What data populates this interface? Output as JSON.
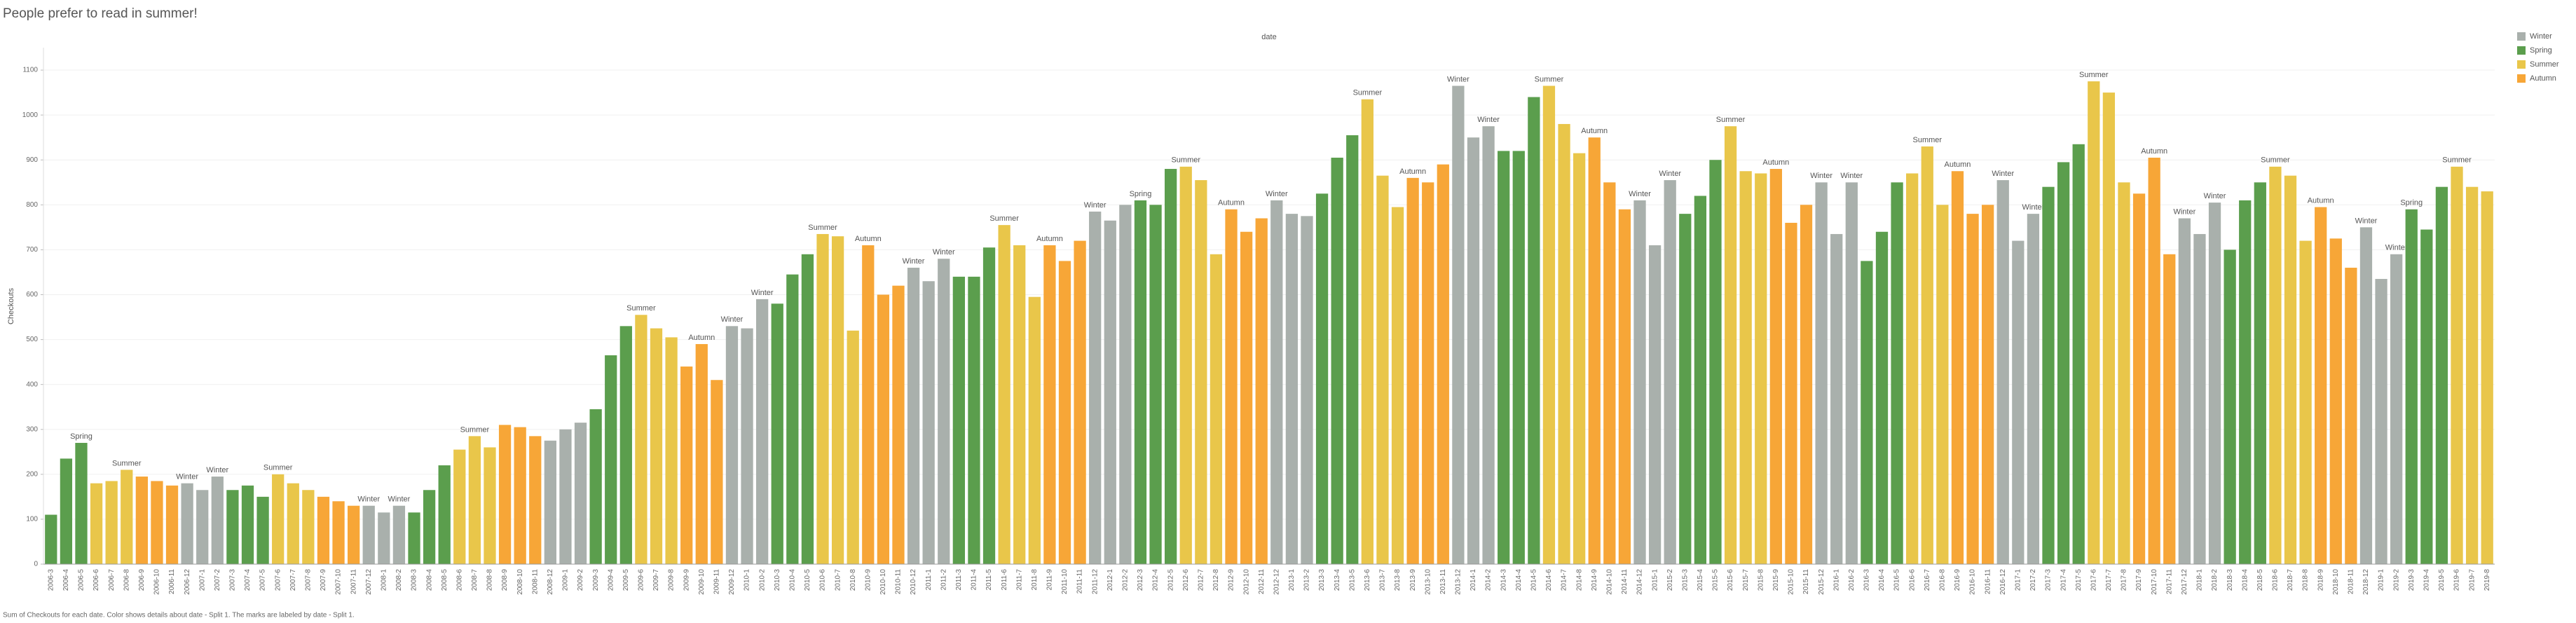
{
  "chart_data": {
    "type": "bar",
    "title": "People prefer to read in summer!",
    "x_label": "date",
    "y_label": "Checkouts",
    "caption": "Sum of Checkouts for each date. Color shows details about date - Split 1. The marks are labeled by date - Split 1.",
    "legend_position": "top-right",
    "grid": true,
    "legend": [
      {
        "name": "Winter",
        "color": "#a9b0ac"
      },
      {
        "name": "Spring",
        "color": "#5b9e4d"
      },
      {
        "name": "Summer",
        "color": "#e9c64a"
      },
      {
        "name": "Autumn",
        "color": "#f7a637"
      }
    ],
    "ylim": [
      0,
      1150
    ],
    "yticks": [
      0,
      100,
      200,
      300,
      400,
      500,
      600,
      700,
      800,
      900,
      1000,
      1100
    ],
    "categories": [
      "2006-3",
      "2006-4",
      "2006-5",
      "2006-6",
      "2006-7",
      "2006-8",
      "2006-9",
      "2006-10",
      "2006-11",
      "2006-12",
      "2007-1",
      "2007-2",
      "2007-3",
      "2007-4",
      "2007-5",
      "2007-6",
      "2007-7",
      "2007-8",
      "2007-9",
      "2007-10",
      "2007-11",
      "2007-12",
      "2008-1",
      "2008-2",
      "2008-3",
      "2008-4",
      "2008-5",
      "2008-6",
      "2008-7",
      "2008-8",
      "2008-9",
      "2008-10",
      "2008-11",
      "2008-12",
      "2009-1",
      "2009-2",
      "2009-3",
      "2009-4",
      "2009-5",
      "2009-6",
      "2009-7",
      "2009-8",
      "2009-9",
      "2009-10",
      "2009-11",
      "2009-12",
      "2010-1",
      "2010-2",
      "2010-3",
      "2010-4",
      "2010-5",
      "2010-6",
      "2010-7",
      "2010-8",
      "2010-9",
      "2010-10",
      "2010-11",
      "2010-12",
      "2011-1",
      "2011-2",
      "2011-3",
      "2011-4",
      "2011-5",
      "2011-6",
      "2011-7",
      "2011-8",
      "2011-9",
      "2011-10",
      "2011-11",
      "2011-12",
      "2012-1",
      "2012-2",
      "2012-3",
      "2012-4",
      "2012-5",
      "2012-6",
      "2012-7",
      "2012-8",
      "2012-9",
      "2012-10",
      "2012-11",
      "2012-12",
      "2013-1",
      "2013-2",
      "2013-3",
      "2013-4",
      "2013-5",
      "2013-6",
      "2013-7",
      "2013-8",
      "2013-9",
      "2013-10",
      "2013-11",
      "2013-12",
      "2014-1",
      "2014-2",
      "2014-3",
      "2014-4",
      "2014-5",
      "2014-6",
      "2014-7",
      "2014-8",
      "2014-9",
      "2014-10",
      "2014-11",
      "2014-12",
      "2015-1",
      "2015-2",
      "2015-3",
      "2015-4",
      "2015-5",
      "2015-6",
      "2015-7",
      "2015-8",
      "2015-9",
      "2015-10",
      "2015-11",
      "2015-12",
      "2016-1",
      "2016-2",
      "2016-3",
      "2016-4",
      "2016-5",
      "2016-6",
      "2016-7",
      "2016-8",
      "2016-9",
      "2016-10",
      "2016-11",
      "2016-12",
      "2017-1",
      "2017-2",
      "2017-3",
      "2017-4",
      "2017-5",
      "2017-6",
      "2017-7",
      "2017-8",
      "2017-9",
      "2017-10",
      "2017-11",
      "2017-12",
      "2018-1",
      "2018-2",
      "2018-3",
      "2018-4",
      "2018-5",
      "2018-6",
      "2018-7",
      "2018-8",
      "2018-9",
      "2018-10",
      "2018-11",
      "2018-12",
      "2019-1",
      "2019-2",
      "2019-3",
      "2019-4",
      "2019-5",
      "2019-6",
      "2019-7",
      "2019-8"
    ],
    "values": [
      110,
      235,
      270,
      180,
      185,
      210,
      195,
      185,
      175,
      180,
      165,
      195,
      165,
      175,
      150,
      200,
      180,
      165,
      150,
      140,
      130,
      130,
      115,
      130,
      115,
      165,
      220,
      255,
      285,
      260,
      310,
      305,
      285,
      275,
      300,
      315,
      345,
      465,
      530,
      555,
      525,
      505,
      440,
      490,
      410,
      530,
      525,
      590,
      580,
      645,
      690,
      735,
      730,
      520,
      710,
      600,
      620,
      660,
      630,
      680,
      640,
      640,
      705,
      755,
      710,
      595,
      710,
      675,
      720,
      785,
      765,
      800,
      810,
      800,
      880,
      885,
      855,
      690,
      790,
      740,
      770,
      810,
      780,
      775,
      825,
      905,
      955,
      1035,
      865,
      795,
      860,
      850,
      890,
      1065,
      950,
      975,
      920,
      920,
      1040,
      1065,
      980,
      915,
      950,
      850,
      790,
      810,
      710,
      855,
      780,
      820,
      900,
      975,
      875,
      870,
      880,
      760,
      800,
      850,
      735,
      850,
      675,
      740,
      850,
      870,
      930,
      800,
      875,
      780,
      800,
      855,
      720,
      780,
      840,
      895,
      935,
      1075,
      1050,
      850,
      825,
      905,
      690,
      770,
      735,
      805,
      700,
      810,
      850,
      885,
      865,
      720,
      795,
      725,
      660,
      750,
      635,
      690,
      790,
      745,
      840,
      885,
      840,
      830
    ],
    "seasons": [
      "Spring",
      "Spring",
      "Spring",
      "Summer",
      "Summer",
      "Summer",
      "Autumn",
      "Autumn",
      "Autumn",
      "Winter",
      "Winter",
      "Winter",
      "Spring",
      "Spring",
      "Spring",
      "Summer",
      "Summer",
      "Summer",
      "Autumn",
      "Autumn",
      "Autumn",
      "Winter",
      "Winter",
      "Winter",
      "Spring",
      "Spring",
      "Spring",
      "Summer",
      "Summer",
      "Summer",
      "Autumn",
      "Autumn",
      "Autumn",
      "Winter",
      "Winter",
      "Winter",
      "Spring",
      "Spring",
      "Spring",
      "Summer",
      "Summer",
      "Summer",
      "Autumn",
      "Autumn",
      "Autumn",
      "Winter",
      "Winter",
      "Winter",
      "Spring",
      "Spring",
      "Spring",
      "Summer",
      "Summer",
      "Summer",
      "Autumn",
      "Autumn",
      "Autumn",
      "Winter",
      "Winter",
      "Winter",
      "Spring",
      "Spring",
      "Spring",
      "Summer",
      "Summer",
      "Summer",
      "Autumn",
      "Autumn",
      "Autumn",
      "Winter",
      "Winter",
      "Winter",
      "Spring",
      "Spring",
      "Spring",
      "Summer",
      "Summer",
      "Summer",
      "Autumn",
      "Autumn",
      "Autumn",
      "Winter",
      "Winter",
      "Winter",
      "Spring",
      "Spring",
      "Spring",
      "Summer",
      "Summer",
      "Summer",
      "Autumn",
      "Autumn",
      "Autumn",
      "Winter",
      "Winter",
      "Winter",
      "Spring",
      "Spring",
      "Spring",
      "Summer",
      "Summer",
      "Summer",
      "Autumn",
      "Autumn",
      "Autumn",
      "Winter",
      "Winter",
      "Winter",
      "Spring",
      "Spring",
      "Spring",
      "Summer",
      "Summer",
      "Summer",
      "Autumn",
      "Autumn",
      "Autumn",
      "Winter",
      "Winter",
      "Winter",
      "Spring",
      "Spring",
      "Spring",
      "Summer",
      "Summer",
      "Summer",
      "Autumn",
      "Autumn",
      "Autumn",
      "Winter",
      "Winter",
      "Winter",
      "Spring",
      "Spring",
      "Spring",
      "Summer",
      "Summer",
      "Summer",
      "Autumn",
      "Autumn",
      "Autumn",
      "Winter",
      "Winter",
      "Winter",
      "Spring",
      "Spring",
      "Spring",
      "Summer",
      "Summer",
      "Summer",
      "Autumn",
      "Autumn",
      "Autumn",
      "Winter",
      "Winter",
      "Winter",
      "Spring",
      "Spring",
      "Spring",
      "Summer",
      "Summer",
      "Summer"
    ],
    "bar_labels": [
      null,
      null,
      "Spring",
      null,
      null,
      "Summer",
      null,
      null,
      null,
      "Winter",
      null,
      "Winter",
      null,
      null,
      null,
      "Summer",
      null,
      null,
      null,
      null,
      null,
      "Winter",
      null,
      "Winter",
      null,
      null,
      null,
      null,
      "Summer",
      null,
      null,
      null,
      null,
      null,
      null,
      null,
      null,
      null,
      null,
      "Summer",
      null,
      null,
      null,
      "Autumn",
      null,
      "Winter",
      null,
      "Winter",
      null,
      null,
      null,
      "Summer",
      null,
      null,
      "Autumn",
      null,
      null,
      "Winter",
      null,
      "Winter",
      null,
      null,
      null,
      "Summer",
      null,
      null,
      "Autumn",
      null,
      null,
      "Winter",
      null,
      null,
      "Spring",
      null,
      null,
      "Summer",
      null,
      null,
      "Autumn",
      null,
      null,
      "Winter",
      null,
      null,
      null,
      null,
      null,
      "Summer",
      null,
      null,
      "Autumn",
      null,
      null,
      "Winter",
      null,
      "Winter",
      null,
      null,
      null,
      "Summer",
      null,
      null,
      "Autumn",
      null,
      null,
      "Winter",
      null,
      "Winter",
      null,
      null,
      null,
      "Summer",
      null,
      null,
      "Autumn",
      null,
      null,
      "Winter",
      null,
      "Winter",
      null,
      null,
      null,
      null,
      "Summer",
      null,
      "Autumn",
      null,
      null,
      "Winter",
      null,
      "Winter",
      null,
      null,
      null,
      "Summer",
      null,
      null,
      null,
      "Autumn",
      null,
      "Winter",
      null,
      "Winter",
      null,
      null,
      null,
      "Summer",
      null,
      null,
      "Autumn",
      null,
      null,
      "Winter",
      null,
      "Winter",
      "Spring",
      null,
      null,
      "Summer",
      null,
      null
    ]
  }
}
